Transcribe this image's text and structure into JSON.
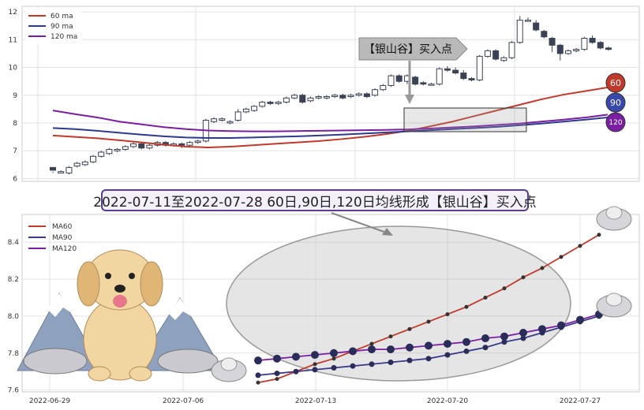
{
  "chart_data": [
    {
      "type": "candlestick",
      "legend": [
        "60 ma",
        "90 ma",
        "120 ma"
      ],
      "legend_position": "top-left",
      "ylim": [
        5.9,
        12.2
      ],
      "yticks": [
        6,
        7,
        8,
        9,
        10,
        11,
        12
      ],
      "grid": true,
      "candles_ohlc": [
        [
          6.4,
          6.3,
          6.25,
          6.2
        ],
        [
          6.2,
          6.25,
          6.3,
          6.2
        ],
        [
          6.2,
          6.4,
          6.45,
          6.15
        ],
        [
          6.45,
          6.55,
          6.6,
          6.4
        ],
        [
          6.5,
          6.6,
          6.65,
          6.45
        ],
        [
          6.6,
          6.8,
          6.85,
          6.55
        ],
        [
          6.8,
          6.95,
          7.0,
          6.75
        ],
        [
          6.9,
          7.05,
          7.1,
          6.85
        ],
        [
          7.0,
          7.05,
          7.1,
          6.95
        ],
        [
          7.05,
          7.15,
          7.2,
          7.0
        ],
        [
          7.15,
          7.25,
          7.3,
          7.1
        ],
        [
          7.25,
          7.1,
          7.3,
          7.05
        ],
        [
          7.1,
          7.2,
          7.25,
          7.05
        ],
        [
          7.2,
          7.3,
          7.35,
          7.15
        ],
        [
          7.3,
          7.2,
          7.35,
          7.15
        ],
        [
          7.2,
          7.25,
          7.3,
          7.15
        ],
        [
          7.25,
          7.2,
          7.3,
          7.1
        ],
        [
          7.2,
          7.3,
          7.35,
          7.15
        ],
        [
          7.3,
          7.35,
          7.4,
          7.25
        ],
        [
          7.35,
          8.1,
          8.15,
          7.3
        ],
        [
          8.05,
          8.15,
          8.2,
          8.0
        ],
        [
          8.1,
          8.15,
          8.2,
          8.05
        ],
        [
          8.0,
          8.05,
          8.1,
          7.95
        ],
        [
          8.1,
          8.4,
          8.5,
          8.05
        ],
        [
          8.4,
          8.5,
          8.55,
          8.35
        ],
        [
          8.45,
          8.6,
          8.65,
          8.4
        ],
        [
          8.6,
          8.75,
          8.8,
          8.55
        ],
        [
          8.75,
          8.7,
          8.8,
          8.65
        ],
        [
          8.7,
          8.75,
          8.8,
          8.65
        ],
        [
          8.75,
          8.9,
          8.95,
          8.7
        ],
        [
          8.9,
          9.0,
          9.05,
          8.85
        ],
        [
          9.0,
          8.75,
          9.05,
          8.7
        ],
        [
          8.8,
          8.9,
          8.95,
          8.75
        ],
        [
          8.9,
          8.95,
          9.0,
          8.85
        ],
        [
          8.9,
          8.95,
          9.0,
          8.85
        ],
        [
          8.95,
          9.0,
          9.05,
          8.9
        ],
        [
          9.0,
          8.9,
          9.05,
          8.85
        ],
        [
          8.95,
          9.0,
          9.05,
          8.9
        ],
        [
          9.0,
          9.05,
          9.1,
          8.95
        ],
        [
          9.05,
          8.95,
          9.1,
          8.9
        ],
        [
          9.0,
          9.2,
          9.25,
          8.95
        ],
        [
          9.2,
          9.35,
          9.4,
          9.15
        ],
        [
          9.35,
          9.7,
          9.75,
          9.3
        ],
        [
          9.7,
          9.5,
          9.75,
          9.45
        ],
        [
          9.5,
          9.7,
          9.75,
          9.4
        ],
        [
          9.65,
          9.4,
          9.7,
          9.35
        ],
        [
          9.45,
          9.4,
          9.5,
          9.35
        ],
        [
          9.4,
          9.4,
          9.45,
          9.35
        ],
        [
          9.4,
          9.95,
          10.0,
          9.35
        ],
        [
          9.95,
          9.9,
          10.05,
          9.85
        ],
        [
          9.9,
          9.8,
          10.0,
          9.75
        ],
        [
          9.8,
          9.6,
          9.9,
          9.55
        ],
        [
          9.6,
          9.55,
          9.65,
          9.5
        ],
        [
          9.55,
          10.4,
          10.45,
          9.5
        ],
        [
          10.4,
          10.6,
          10.65,
          10.35
        ],
        [
          10.6,
          10.3,
          10.65,
          10.25
        ],
        [
          10.25,
          10.35,
          10.4,
          10.2
        ],
        [
          10.35,
          10.9,
          10.95,
          10.3
        ],
        [
          10.9,
          11.7,
          11.85,
          10.85
        ],
        [
          11.7,
          11.7,
          11.8,
          11.65
        ],
        [
          11.6,
          11.35,
          11.7,
          11.3
        ],
        [
          11.3,
          11.1,
          11.35,
          11.05
        ],
        [
          11.05,
          10.8,
          11.1,
          10.55
        ],
        [
          10.8,
          10.5,
          10.85,
          10.25
        ],
        [
          10.5,
          10.6,
          10.65,
          10.45
        ],
        [
          10.6,
          10.65,
          10.7,
          10.55
        ],
        [
          10.65,
          11.05,
          11.1,
          10.6
        ],
        [
          11.05,
          10.9,
          11.15,
          10.85
        ],
        [
          10.9,
          10.7,
          10.95,
          10.65
        ],
        [
          10.7,
          10.65,
          10.75,
          10.6
        ]
      ],
      "ma_series": [
        {
          "name": "60 ma",
          "color": "#c0392b",
          "values": [
            7.55,
            7.5,
            7.45,
            7.38,
            7.3,
            7.22,
            7.15,
            7.12,
            7.15,
            7.2,
            7.25,
            7.3,
            7.35,
            7.42,
            7.5,
            7.6,
            7.72,
            7.88,
            8.05,
            8.25,
            8.45,
            8.65,
            8.85,
            9.02,
            9.15,
            9.28
          ]
        },
        {
          "name": "90 ma",
          "color": "#2e3a8c",
          "values": [
            7.82,
            7.78,
            7.72,
            7.65,
            7.58,
            7.52,
            7.48,
            7.46,
            7.46,
            7.48,
            7.5,
            7.52,
            7.55,
            7.58,
            7.62,
            7.66,
            7.7,
            7.74,
            7.78,
            7.82,
            7.86,
            7.92,
            7.98,
            8.05,
            8.12,
            8.2
          ]
        },
        {
          "name": "120 ma",
          "color": "#7b1fa2",
          "values": [
            8.45,
            8.32,
            8.2,
            8.05,
            7.95,
            7.85,
            7.78,
            7.73,
            7.71,
            7.7,
            7.7,
            7.71,
            7.72,
            7.73,
            7.74,
            7.75,
            7.77,
            7.8,
            7.84,
            7.88,
            7.93,
            7.98,
            8.05,
            8.12,
            8.2,
            8.3
          ]
        }
      ],
      "end_markers": [
        {
          "label": "60",
          "color": "#c0392b"
        },
        {
          "label": "90",
          "color": "#3949ab"
        },
        {
          "label": "120",
          "color": "#7b1fa2"
        }
      ],
      "annotation": {
        "text": "【银山谷】买入点"
      }
    },
    {
      "type": "line",
      "legend": [
        "MA60",
        "MA90",
        "MA120"
      ],
      "legend_position": "top-left",
      "ylim": [
        7.59,
        8.55
      ],
      "yticks": [
        7.6,
        7.8,
        8.0,
        8.2,
        8.4
      ],
      "xtick_labels": [
        "2022-06-29",
        "2022-07-06",
        "2022-07-13",
        "2022-07-20",
        "2022-07-27"
      ],
      "x": [
        "2022-07-10",
        "2022-07-11",
        "2022-07-12",
        "2022-07-13",
        "2022-07-14",
        "2022-07-15",
        "2022-07-16",
        "2022-07-17",
        "2022-07-18",
        "2022-07-19",
        "2022-07-20",
        "2022-07-21",
        "2022-07-22",
        "2022-07-23",
        "2022-07-24",
        "2022-07-25",
        "2022-07-26",
        "2022-07-27",
        "2022-07-28"
      ],
      "series": [
        {
          "name": "MA60",
          "color": "#c0392b",
          "values": [
            7.64,
            7.66,
            7.7,
            7.74,
            7.77,
            7.81,
            7.85,
            7.89,
            7.93,
            7.97,
            8.01,
            8.05,
            8.1,
            8.15,
            8.21,
            8.26,
            8.32,
            8.38,
            8.44
          ]
        },
        {
          "name": "MA90",
          "color": "#3a3a8c",
          "values": [
            7.68,
            7.69,
            7.7,
            7.71,
            7.72,
            7.73,
            7.74,
            7.75,
            7.76,
            7.77,
            7.79,
            7.81,
            7.83,
            7.86,
            7.88,
            7.91,
            7.94,
            7.97,
            8.0
          ]
        },
        {
          "name": "MA120",
          "color": "#7b1fa2",
          "values": [
            7.76,
            7.77,
            7.78,
            7.79,
            7.8,
            7.81,
            7.82,
            7.82,
            7.83,
            7.84,
            7.85,
            7.86,
            7.88,
            7.89,
            7.91,
            7.93,
            7.95,
            7.98,
            8.01
          ]
        }
      ]
    }
  ],
  "callout_text": "2022-07-11至2022-07-28 60日,90日,120日均线形成【银山谷】买入点"
}
